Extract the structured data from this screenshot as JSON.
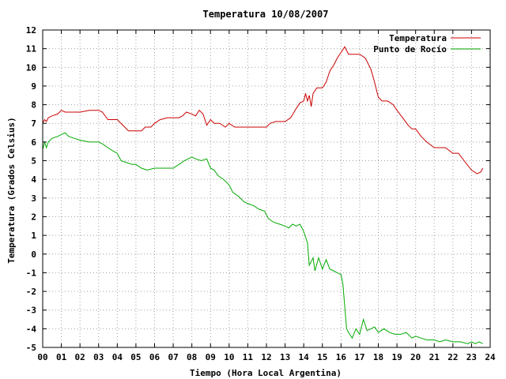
{
  "chart_data": {
    "type": "line",
    "title": "Temperatura 10/08/2007",
    "xlabel": "Tiempo (Hora Local Argentina)",
    "ylabel": "Temperatura (Grados Celsius)",
    "xlim": [
      0,
      24
    ],
    "ylim": [
      -5,
      12
    ],
    "x_ticks": [
      "00",
      "01",
      "02",
      "03",
      "04",
      "05",
      "06",
      "07",
      "08",
      "09",
      "10",
      "11",
      "12",
      "13",
      "14",
      "15",
      "16",
      "17",
      "18",
      "19",
      "20",
      "21",
      "22",
      "23",
      "24"
    ],
    "y_ticks": [
      -5,
      -4,
      -3,
      -2,
      -1,
      0,
      1,
      2,
      3,
      4,
      5,
      6,
      7,
      8,
      9,
      10,
      11,
      12
    ],
    "grid": true,
    "legend_position": "top-right",
    "series": [
      {
        "name": "Temperatura",
        "color": "#cc0000",
        "x": [
          0,
          0.1,
          0.2,
          0.3,
          0.5,
          0.8,
          1.0,
          1.2,
          1.5,
          2.0,
          2.5,
          3.0,
          3.2,
          3.5,
          4.0,
          4.3,
          4.6,
          5.0,
          5.3,
          5.5,
          5.8,
          6.0,
          6.3,
          6.7,
          7.0,
          7.3,
          7.5,
          7.7,
          8.0,
          8.2,
          8.4,
          8.6,
          8.8,
          9.0,
          9.2,
          9.5,
          9.8,
          10.0,
          10.3,
          10.5,
          11.0,
          11.5,
          12.0,
          12.2,
          12.5,
          13.0,
          13.3,
          13.6,
          13.8,
          14.0,
          14.1,
          14.2,
          14.3,
          14.4,
          14.5,
          14.7,
          15.0,
          15.2,
          15.4,
          15.6,
          15.8,
          16.0,
          16.2,
          16.4,
          16.6,
          17.0,
          17.3,
          17.6,
          17.8,
          18.0,
          18.2,
          18.5,
          18.8,
          19.0,
          19.3,
          19.6,
          19.8,
          20.0,
          20.3,
          20.6,
          21.0,
          21.3,
          21.6,
          22.0,
          22.3,
          22.6,
          23.0,
          23.3,
          23.5,
          23.6
        ],
        "y": [
          7.0,
          7.2,
          7.1,
          7.3,
          7.4,
          7.5,
          7.7,
          7.6,
          7.6,
          7.6,
          7.7,
          7.7,
          7.6,
          7.2,
          7.2,
          6.9,
          6.6,
          6.6,
          6.6,
          6.8,
          6.8,
          7.0,
          7.2,
          7.3,
          7.3,
          7.3,
          7.4,
          7.6,
          7.5,
          7.4,
          7.7,
          7.5,
          6.9,
          7.2,
          7.0,
          7.0,
          6.8,
          7.0,
          6.8,
          6.8,
          6.8,
          6.8,
          6.8,
          7.0,
          7.1,
          7.1,
          7.3,
          7.8,
          8.1,
          8.2,
          8.6,
          8.2,
          8.5,
          7.9,
          8.6,
          8.9,
          8.9,
          9.2,
          9.8,
          10.1,
          10.5,
          10.8,
          11.1,
          10.7,
          10.7,
          10.7,
          10.5,
          9.9,
          9.2,
          8.4,
          8.2,
          8.2,
          8.0,
          7.7,
          7.3,
          6.9,
          6.7,
          6.7,
          6.3,
          6.0,
          5.7,
          5.7,
          5.7,
          5.4,
          5.4,
          5.0,
          4.5,
          4.3,
          4.4,
          4.6
        ]
      },
      {
        "name": "Punto de Rocío",
        "color": "#00aa00",
        "x": [
          0,
          0.1,
          0.2,
          0.3,
          0.5,
          0.8,
          1.0,
          1.2,
          1.4,
          1.7,
          2.0,
          2.5,
          3.0,
          3.2,
          3.5,
          3.8,
          4.0,
          4.2,
          4.5,
          4.8,
          5.0,
          5.3,
          5.6,
          6.0,
          6.5,
          7.0,
          7.3,
          7.6,
          7.8,
          8.0,
          8.2,
          8.5,
          8.8,
          9.0,
          9.2,
          9.4,
          9.7,
          10.0,
          10.2,
          10.5,
          10.8,
          11.0,
          11.3,
          11.6,
          11.9,
          12.1,
          12.4,
          12.7,
          13.0,
          13.2,
          13.4,
          13.6,
          13.8,
          14.0,
          14.2,
          14.3,
          14.5,
          14.6,
          14.8,
          15.0,
          15.2,
          15.4,
          15.6,
          15.8,
          16.0,
          16.1,
          16.2,
          16.3,
          16.4,
          16.6,
          16.8,
          17.0,
          17.2,
          17.4,
          17.6,
          17.8,
          18.0,
          18.3,
          18.6,
          18.9,
          19.2,
          19.5,
          19.8,
          20.0,
          20.3,
          20.6,
          21.0,
          21.3,
          21.6,
          22.0,
          22.4,
          22.8,
          23.0,
          23.2,
          23.4,
          23.6
        ],
        "y": [
          5.6,
          6.0,
          5.7,
          6.0,
          6.2,
          6.3,
          6.4,
          6.5,
          6.3,
          6.2,
          6.1,
          6.0,
          6.0,
          5.9,
          5.7,
          5.5,
          5.4,
          5.0,
          4.9,
          4.8,
          4.8,
          4.6,
          4.5,
          4.6,
          4.6,
          4.6,
          4.8,
          5.0,
          5.1,
          5.2,
          5.1,
          5.0,
          5.1,
          4.6,
          4.5,
          4.2,
          4.0,
          3.7,
          3.3,
          3.1,
          2.8,
          2.7,
          2.6,
          2.4,
          2.3,
          1.9,
          1.7,
          1.6,
          1.5,
          1.4,
          1.6,
          1.5,
          1.6,
          1.2,
          0.6,
          -0.6,
          -0.2,
          -0.9,
          -0.2,
          -0.8,
          -0.3,
          -0.8,
          -0.9,
          -1.0,
          -1.1,
          -1.6,
          -2.8,
          -4.0,
          -4.2,
          -4.5,
          -4.0,
          -4.3,
          -3.5,
          -4.1,
          -4.0,
          -3.9,
          -4.2,
          -4.0,
          -4.2,
          -4.3,
          -4.3,
          -4.2,
          -4.5,
          -4.4,
          -4.5,
          -4.6,
          -4.6,
          -4.7,
          -4.6,
          -4.7,
          -4.7,
          -4.8,
          -4.7,
          -4.8,
          -4.7,
          -4.8
        ]
      }
    ]
  }
}
